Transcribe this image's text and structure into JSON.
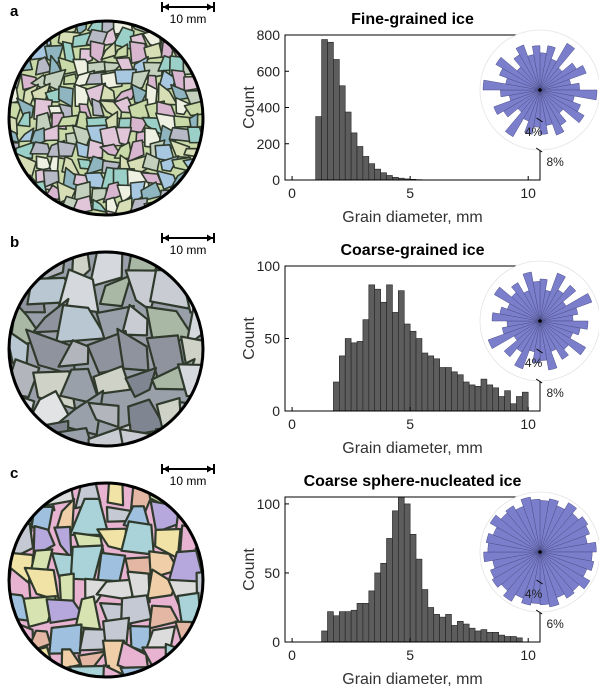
{
  "panels": [
    {
      "letter": "a",
      "scalebar_label": "10 mm",
      "micrograph_palette": [
        "#c9d9a7",
        "#9bd0c8",
        "#e0c6d8",
        "#b7b9c7",
        "#d7ddb4",
        "#a8c7e0",
        "#d9b6cf",
        "#c2d0bd",
        "#eef0e2",
        "#8fb6c0"
      ],
      "rose_color": "#7b7fcb",
      "rose_values": [
        0.62,
        0.75,
        0.55,
        0.9,
        0.48,
        0.7,
        0.82,
        0.52,
        0.66,
        0.95,
        0.58,
        0.72,
        0.85,
        0.5,
        0.68,
        0.8,
        0.6,
        0.74
      ],
      "rose_max": 9
    },
    {
      "letter": "b",
      "scalebar_label": "10 mm",
      "micrograph_palette": [
        "#9aa0aa",
        "#c9ccd2",
        "#b2b5bc",
        "#d5d8dd",
        "#8e939e",
        "#a9b7a5",
        "#cfd2c6",
        "#7f8591",
        "#e2e3e5",
        "#b9c7d2"
      ],
      "rose_color": "#7b7fcb",
      "rose_values": [
        0.7,
        0.52,
        0.85,
        0.6,
        0.78,
        0.5,
        0.92,
        0.64,
        0.55,
        0.8,
        0.68,
        0.58,
        0.88,
        0.62,
        0.74,
        0.54,
        0.83,
        0.66
      ],
      "rose_max": 9
    },
    {
      "letter": "c",
      "scalebar_label": "10 mm",
      "micrograph_palette": [
        "#e7b3d1",
        "#f0cfa8",
        "#a9d3d8",
        "#c5c9d3",
        "#d7e3b0",
        "#b6a8dc",
        "#f1e3a6",
        "#9fc1df",
        "#dcdcdc",
        "#e3b7a4"
      ],
      "rose_color": "#7b7fcb",
      "rose_values": [
        0.86,
        0.9,
        0.82,
        0.95,
        0.84,
        0.92,
        0.88,
        0.8,
        0.94,
        0.87,
        0.91,
        0.83,
        0.96,
        0.85,
        0.89,
        0.81,
        0.93,
        0.88
      ],
      "rose_max": 6.5
    }
  ],
  "chart_data": [
    {
      "type": "bar",
      "title": "Fine-grained ice",
      "xlabel": "Grain diameter, mm",
      "ylabel": "Count",
      "xlim": [
        -0.3,
        10.5
      ],
      "ylim": [
        0,
        800
      ],
      "xticks": [
        0,
        5,
        10
      ],
      "yticks": [
        0,
        200,
        400,
        600,
        800
      ],
      "bin_width": 0.25,
      "x": [
        1.0,
        1.25,
        1.5,
        1.75,
        2.0,
        2.25,
        2.5,
        2.75,
        3.0,
        3.25,
        3.5,
        3.75,
        4.0,
        4.25,
        4.5,
        4.75,
        5.0,
        5.25,
        5.5
      ],
      "values": [
        350,
        775,
        760,
        665,
        520,
        375,
        260,
        185,
        130,
        90,
        60,
        40,
        25,
        15,
        10,
        6,
        4,
        2,
        1
      ],
      "bar_color": "#5d5d5d",
      "rose_ticks": [
        "4%",
        "8%"
      ]
    },
    {
      "type": "bar",
      "title": "Coarse-grained ice",
      "xlabel": "Grain diameter, mm",
      "ylabel": "Count",
      "xlim": [
        -0.3,
        10.5
      ],
      "ylim": [
        0,
        100
      ],
      "xticks": [
        0,
        5,
        10
      ],
      "yticks": [
        0,
        50,
        100
      ],
      "bin_width": 0.25,
      "x": [
        1.75,
        2.0,
        2.25,
        2.5,
        2.75,
        3.0,
        3.25,
        3.5,
        3.75,
        4.0,
        4.25,
        4.5,
        4.75,
        5.0,
        5.25,
        5.5,
        5.75,
        6.0,
        6.25,
        6.5,
        6.75,
        7.0,
        7.25,
        7.5,
        7.75,
        8.0,
        8.25,
        8.5,
        8.75,
        9.0,
        9.25,
        9.5,
        9.75
      ],
      "values": [
        20,
        38,
        50,
        47,
        48,
        63,
        87,
        84,
        75,
        87,
        68,
        83,
        60,
        55,
        50,
        40,
        38,
        36,
        30,
        30,
        27,
        25,
        20,
        18,
        17,
        22,
        18,
        16,
        10,
        14,
        5,
        10,
        13
      ],
      "bar_color": "#5d5d5d",
      "rose_ticks": [
        "4%",
        "8%"
      ]
    },
    {
      "type": "bar",
      "title": "Coarse sphere-nucleated ice",
      "xlabel": "Grain diameter, mm",
      "ylabel": "Count",
      "xlim": [
        -0.3,
        10.5
      ],
      "ylim": [
        0,
        105
      ],
      "xticks": [
        0,
        5,
        10
      ],
      "yticks": [
        0,
        50,
        100
      ],
      "bin_width": 0.25,
      "x": [
        1.25,
        1.5,
        1.75,
        2.0,
        2.25,
        2.5,
        2.75,
        3.0,
        3.25,
        3.5,
        3.75,
        4.0,
        4.25,
        4.5,
        4.75,
        5.0,
        5.25,
        5.5,
        5.75,
        6.0,
        6.25,
        6.5,
        6.75,
        7.0,
        7.25,
        7.5,
        7.75,
        8.0,
        8.25,
        8.5,
        8.75,
        9.0,
        9.25,
        9.5
      ],
      "values": [
        8,
        22,
        19,
        22,
        22,
        23,
        28,
        28,
        37,
        50,
        57,
        75,
        95,
        105,
        100,
        78,
        60,
        38,
        25,
        20,
        18,
        20,
        12,
        15,
        13,
        10,
        8,
        9,
        7,
        7,
        5,
        4,
        4,
        3
      ],
      "bar_color": "#5d5d5d",
      "rose_ticks": [
        "4%",
        "6%"
      ]
    }
  ]
}
